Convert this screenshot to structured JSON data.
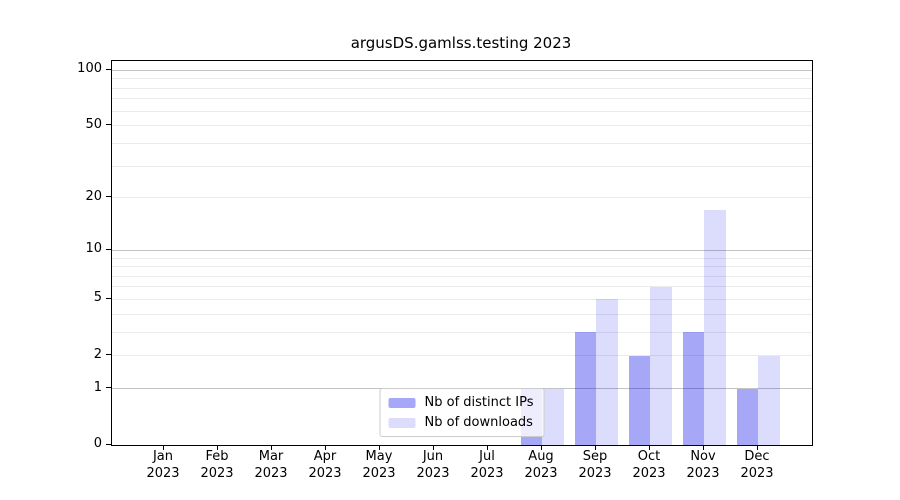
{
  "chart_data": {
    "type": "bar",
    "title": "argusDS.gamlss.testing 2023",
    "categories": [
      "Jan",
      "Feb",
      "Mar",
      "Apr",
      "May",
      "Jun",
      "Jul",
      "Aug",
      "Sep",
      "Oct",
      "Nov",
      "Dec"
    ],
    "x_year": "2023",
    "series": [
      {
        "name": "Nb of distinct IPs",
        "color": "#a8a8f6",
        "fill": "rgba(10,10,235,0.36)",
        "values": [
          0,
          0,
          0,
          0,
          0,
          0,
          0,
          1,
          3,
          2,
          3,
          1
        ]
      },
      {
        "name": "Nb of downloads",
        "color": "#dcdcf9",
        "fill": "rgba(10,10,235,0.14)",
        "values": [
          0,
          0,
          0,
          0,
          0,
          0,
          0,
          1,
          5,
          6,
          17,
          2
        ]
      }
    ],
    "yscale": "log1p",
    "ylim": [
      0,
      112
    ],
    "yticks": [
      0,
      1,
      2,
      5,
      10,
      20,
      50,
      100
    ],
    "grid_major": [
      1,
      10,
      100
    ],
    "grid_minor": [
      2,
      3,
      4,
      5,
      6,
      7,
      8,
      9,
      20,
      30,
      40,
      50,
      60,
      70,
      80,
      90
    ],
    "grid": true,
    "legend_position": "lower center",
    "colors": {
      "grid_major": "#c3c3c6",
      "grid_minor": "#ebebee",
      "axis": "#000000",
      "legend_border": "#cccccc",
      "background": "#ffffff"
    }
  }
}
